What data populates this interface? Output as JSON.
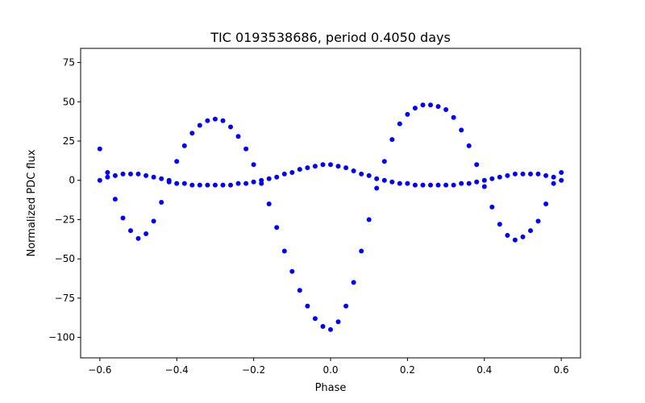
{
  "chart_data": {
    "type": "scatter",
    "title": "TIC 0193538686, period 0.4050 days",
    "xlabel": "Phase",
    "ylabel": "Normalized PDC flux",
    "xlim": [
      -0.65,
      0.65
    ],
    "ylim": [
      -113,
      84
    ],
    "xticks": [
      -0.6,
      -0.4,
      -0.2,
      0.0,
      0.2,
      0.4,
      0.6
    ],
    "xtick_labels": [
      "−0.6",
      "−0.4",
      "−0.2",
      "0.0",
      "0.2",
      "0.4",
      "0.6"
    ],
    "yticks": [
      75,
      50,
      25,
      0,
      -25,
      -50,
      -75,
      -100
    ],
    "ytick_labels": [
      "75",
      "50",
      "25",
      "0",
      "−25",
      "−50",
      "−75",
      "−100"
    ],
    "grid": false,
    "marker_color": "#0000ff",
    "series": [
      {
        "x": [
          -0.6,
          -0.58,
          -0.56,
          -0.54,
          -0.52,
          -0.5,
          -0.48,
          -0.46,
          -0.44,
          -0.42,
          -0.4,
          -0.38,
          -0.36,
          -0.34,
          -0.32,
          -0.3,
          -0.28,
          -0.26,
          -0.24,
          -0.22,
          -0.2,
          -0.18,
          -0.16,
          -0.14,
          -0.12,
          -0.1,
          -0.08,
          -0.06,
          -0.04,
          -0.02,
          0.0,
          0.02,
          0.04,
          0.06,
          0.08,
          0.1,
          0.12,
          0.14,
          0.16,
          0.18,
          0.2,
          0.22,
          0.24,
          0.26,
          0.28,
          0.3,
          0.32,
          0.34,
          0.36,
          0.38,
          0.4,
          0.42,
          0.44,
          0.46,
          0.48,
          0.5,
          0.52,
          0.54,
          0.56,
          0.58,
          0.6
        ],
        "y": [
          20,
          5,
          -12,
          -24,
          -32,
          -37,
          -34,
          -26,
          -14,
          0,
          12,
          22,
          30,
          35,
          38,
          39,
          38,
          34,
          28,
          20,
          10,
          -2,
          -15,
          -30,
          -45,
          -58,
          -70,
          -80,
          -88,
          -93,
          -95,
          -90,
          -80,
          -65,
          -45,
          -25,
          -5,
          12,
          26,
          36,
          42,
          46,
          48,
          48,
          47,
          45,
          40,
          32,
          22,
          10,
          -4,
          -17,
          -28,
          -35,
          -38,
          -36,
          -32,
          -26,
          -15,
          -2,
          5
        ]
      },
      {
        "x": [
          -0.6,
          -0.58,
          -0.56,
          -0.54,
          -0.52,
          -0.5,
          -0.48,
          -0.46,
          -0.44,
          -0.42,
          -0.4,
          -0.38,
          -0.36,
          -0.34,
          -0.32,
          -0.3,
          -0.28,
          -0.26,
          -0.24,
          -0.22,
          -0.2,
          -0.18,
          -0.16,
          -0.14,
          -0.12,
          -0.1,
          -0.08,
          -0.06,
          -0.04,
          -0.02,
          0.0,
          0.02,
          0.04,
          0.06,
          0.08,
          0.1,
          0.12,
          0.14,
          0.16,
          0.18,
          0.2,
          0.22,
          0.24,
          0.26,
          0.28,
          0.3,
          0.32,
          0.34,
          0.36,
          0.38,
          0.4,
          0.42,
          0.44,
          0.46,
          0.48,
          0.5,
          0.52,
          0.54,
          0.56,
          0.58,
          0.6
        ],
        "y": [
          0,
          2,
          3,
          4,
          4,
          4,
          3,
          2,
          1,
          -1,
          -2,
          -2,
          -3,
          -3,
          -3,
          -3,
          -3,
          -3,
          -2,
          -2,
          -1,
          0,
          1,
          2,
          4,
          5,
          7,
          8,
          9,
          10,
          10,
          9,
          8,
          6,
          4,
          3,
          1,
          0,
          -1,
          -2,
          -2,
          -3,
          -3,
          -3,
          -3,
          -3,
          -3,
          -2,
          -2,
          -1,
          0,
          1,
          2,
          3,
          4,
          4,
          4,
          4,
          3,
          2,
          0
        ]
      }
    ]
  }
}
